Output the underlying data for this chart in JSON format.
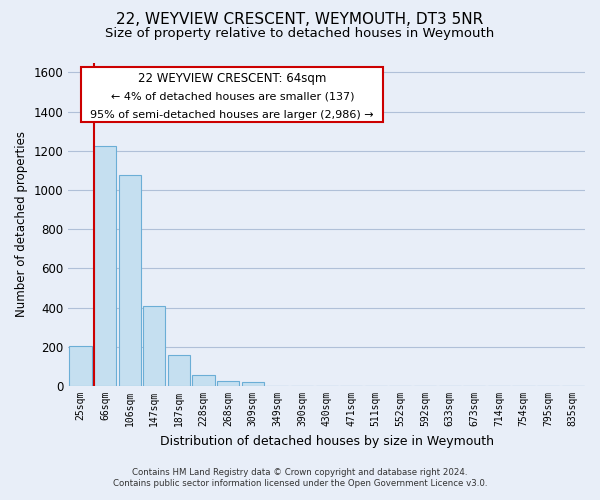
{
  "title": "22, WEYVIEW CRESCENT, WEYMOUTH, DT3 5NR",
  "subtitle": "Size of property relative to detached houses in Weymouth",
  "xlabel": "Distribution of detached houses by size in Weymouth",
  "ylabel": "Number of detached properties",
  "categories": [
    "25sqm",
    "66sqm",
    "106sqm",
    "147sqm",
    "187sqm",
    "228sqm",
    "268sqm",
    "309sqm",
    "349sqm",
    "390sqm",
    "430sqm",
    "471sqm",
    "511sqm",
    "552sqm",
    "592sqm",
    "633sqm",
    "673sqm",
    "714sqm",
    "754sqm",
    "795sqm",
    "835sqm"
  ],
  "bar_values": [
    205,
    1225,
    1075,
    410,
    160,
    55,
    25,
    20,
    0,
    0,
    0,
    0,
    0,
    0,
    0,
    0,
    0,
    0,
    0,
    0,
    0
  ],
  "bar_color": "#c5dff0",
  "bar_edge_color": "#6baed6",
  "property_line_color": "#cc0000",
  "ylim": [
    0,
    1650
  ],
  "yticks": [
    0,
    200,
    400,
    600,
    800,
    1000,
    1200,
    1400,
    1600
  ],
  "annotation_title": "22 WEYVIEW CRESCENT: 64sqm",
  "annotation_line1": "← 4% of detached houses are smaller (137)",
  "annotation_line2": "95% of semi-detached houses are larger (2,986) →",
  "footer_line1": "Contains HM Land Registry data © Crown copyright and database right 2024.",
  "footer_line2": "Contains public sector information licensed under the Open Government Licence v3.0.",
  "background_color": "#e8eef8",
  "plot_background_color": "#e8eef8",
  "grid_color": "#b0c0d8",
  "title_fontsize": 11,
  "subtitle_fontsize": 9.5,
  "ylabel_fontsize": 8.5,
  "xlabel_fontsize": 9
}
